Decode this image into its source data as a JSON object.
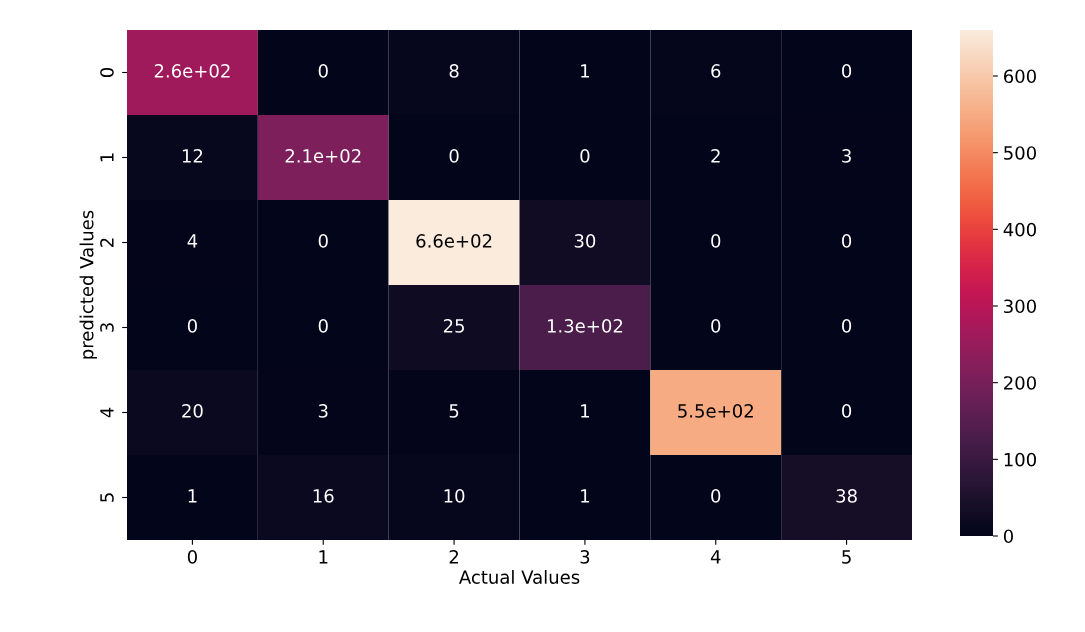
{
  "chart_data": {
    "type": "heatmap",
    "xlabel": "Actual Values",
    "ylabel": "predicted Values",
    "categories": [
      "0",
      "1",
      "2",
      "3",
      "4",
      "5"
    ],
    "y_categories": [
      "0",
      "1",
      "2",
      "3",
      "4",
      "5"
    ],
    "cells": [
      [
        260,
        0,
        8,
        1,
        6,
        0
      ],
      [
        12,
        210,
        0,
        0,
        2,
        3
      ],
      [
        4,
        0,
        660,
        30,
        0,
        0
      ],
      [
        0,
        0,
        25,
        130,
        0,
        0
      ],
      [
        20,
        3,
        5,
        1,
        550,
        0
      ],
      [
        1,
        16,
        10,
        1,
        0,
        38
      ]
    ],
    "cell_labels": [
      [
        "2.6e+02",
        "0",
        "8",
        "1",
        "6",
        "0"
      ],
      [
        "12",
        "2.1e+02",
        "0",
        "0",
        "2",
        "3"
      ],
      [
        "4",
        "0",
        "6.6e+02",
        "30",
        "0",
        "0"
      ],
      [
        "0",
        "0",
        "25",
        "1.3e+02",
        "0",
        "0"
      ],
      [
        "20",
        "3",
        "5",
        "1",
        "5.5e+02",
        "0"
      ],
      [
        "1",
        "16",
        "10",
        "1",
        "0",
        "38"
      ]
    ],
    "clim": [
      0,
      660
    ],
    "cticks": [
      0,
      100,
      200,
      300,
      400,
      500,
      600
    ]
  }
}
